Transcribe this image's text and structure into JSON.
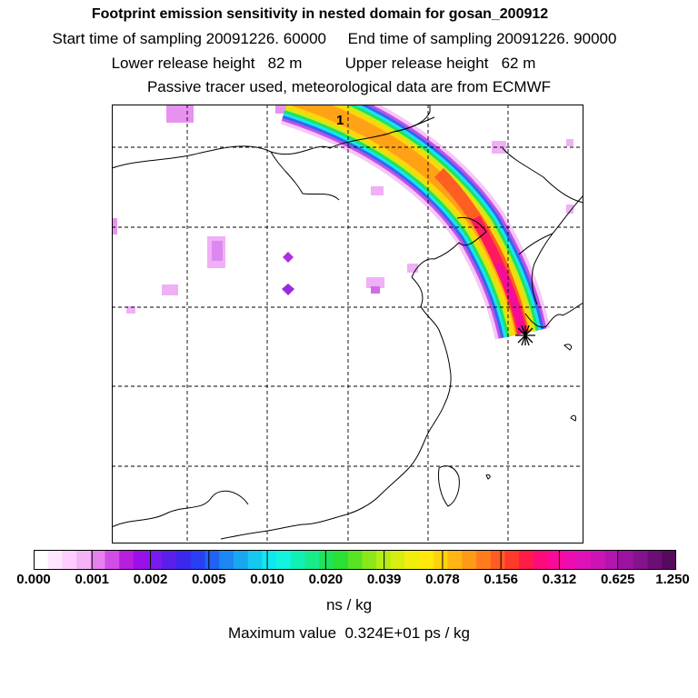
{
  "header": {
    "title": "Footprint emission sensitivity in nested domain for gosan_200912",
    "line2": "Start time of sampling 20091226. 60000     End time of sampling 20091226. 90000",
    "line3": "Lower release height   82 m          Upper release height   62 m",
    "line4": "Passive tracer used, meteorological data are from ECMWF"
  },
  "map": {
    "plume_label": "1",
    "receptor_marker": "asterisk-star"
  },
  "colorbar": {
    "tick_labels": [
      "0.000",
      "0.001",
      "0.002",
      "0.005",
      "0.010",
      "0.020",
      "0.039",
      "0.078",
      "0.156",
      "0.312",
      "0.625",
      "1.250"
    ],
    "colors": [
      "#ffffff",
      "#ffe6ff",
      "#ffccff",
      "#f4b3f7",
      "#e680ee",
      "#d24de6",
      "#b61ee0",
      "#9a10e8",
      "#7b1aee",
      "#5a1fe8",
      "#3b28ee",
      "#2a3ef4",
      "#1f62f4",
      "#1c86f2",
      "#1aa6ee",
      "#16c8ef",
      "#0fe8f0",
      "#10f4e0",
      "#10f0b4",
      "#18ec8a",
      "#20e25c",
      "#2bdf33",
      "#58e323",
      "#8ae81a",
      "#b6ec15",
      "#d8ee10",
      "#f2ee0c",
      "#ffe80a",
      "#ffd20e",
      "#ffb612",
      "#ff9a16",
      "#ff7c1c",
      "#ff5c22",
      "#ff3a2a",
      "#ff1a4a",
      "#ff0a7a",
      "#fa0a98",
      "#ee0cae",
      "#e011b8",
      "#cc14b6",
      "#b414ae",
      "#9c12a0",
      "#84128c",
      "#6c0e76",
      "#560a5e"
    ],
    "units": "ns / kg"
  },
  "footer": {
    "max_value": "Maximum value  0.324E+01 ps / kg"
  }
}
